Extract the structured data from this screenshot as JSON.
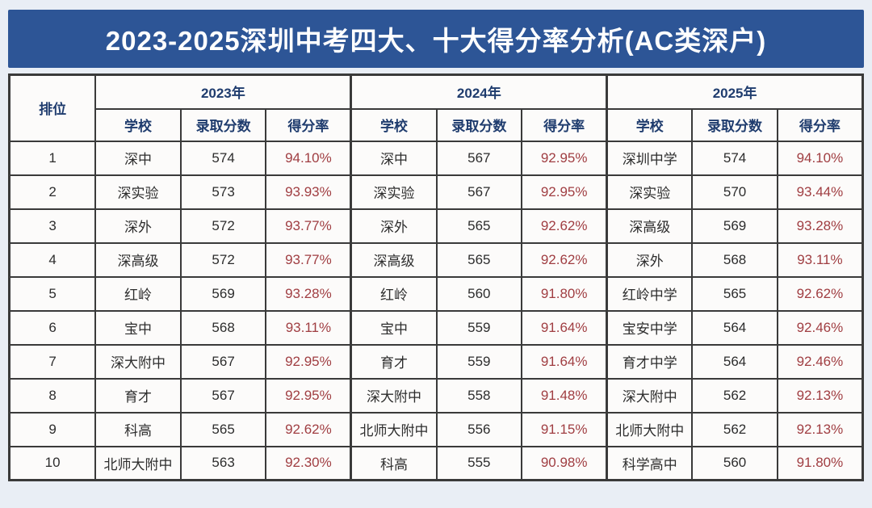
{
  "banner": {
    "title": "2023-2025深圳中考四大、十大得分率分析(AC类深户)"
  },
  "colors": {
    "banner_bg": "#2d5596",
    "banner_text": "#ffffff",
    "header_text": "#1f3c6e",
    "body_text": "#2d2d2d",
    "rate_text": "#a03e42",
    "border": "#3a3a3a",
    "page_bg": "#e9eef5",
    "cell_bg": "#fcfbfa"
  },
  "table": {
    "rank_header": "排位",
    "years": [
      "2023年",
      "2024年",
      "2025年"
    ],
    "sub_headers": [
      "学校",
      "录取分数",
      "得分率"
    ]
  },
  "chart_data": {
    "type": "table",
    "title": "2023-2025深圳中考四大、十大得分率分析(AC类深户)",
    "columns": [
      "排位",
      "2023年 学校",
      "2023年 录取分数",
      "2023年 得分率",
      "2024年 学校",
      "2024年 录取分数",
      "2024年 得分率",
      "2025年 学校",
      "2025年 录取分数",
      "2025年 得分率"
    ],
    "rows": [
      [
        "1",
        "深中",
        "574",
        "94.10%",
        "深中",
        "567",
        "92.95%",
        "深圳中学",
        "574",
        "94.10%"
      ],
      [
        "2",
        "深实验",
        "573",
        "93.93%",
        "深实验",
        "567",
        "92.95%",
        "深实验",
        "570",
        "93.44%"
      ],
      [
        "3",
        "深外",
        "572",
        "93.77%",
        "深外",
        "565",
        "92.62%",
        "深高级",
        "569",
        "93.28%"
      ],
      [
        "4",
        "深高级",
        "572",
        "93.77%",
        "深高级",
        "565",
        "92.62%",
        "深外",
        "568",
        "93.11%"
      ],
      [
        "5",
        "红岭",
        "569",
        "93.28%",
        "红岭",
        "560",
        "91.80%",
        "红岭中学",
        "565",
        "92.62%"
      ],
      [
        "6",
        "宝中",
        "568",
        "93.11%",
        "宝中",
        "559",
        "91.64%",
        "宝安中学",
        "564",
        "92.46%"
      ],
      [
        "7",
        "深大附中",
        "567",
        "92.95%",
        "育才",
        "559",
        "91.64%",
        "育才中学",
        "564",
        "92.46%"
      ],
      [
        "8",
        "育才",
        "567",
        "92.95%",
        "深大附中",
        "558",
        "91.48%",
        "深大附中",
        "562",
        "92.13%"
      ],
      [
        "9",
        "科高",
        "565",
        "92.62%",
        "北师大附中",
        "556",
        "91.15%",
        "北师大附中",
        "562",
        "92.13%"
      ],
      [
        "10",
        "北师大附中",
        "563",
        "92.30%",
        "科高",
        "555",
        "90.98%",
        "科学高中",
        "560",
        "91.80%"
      ]
    ]
  }
}
